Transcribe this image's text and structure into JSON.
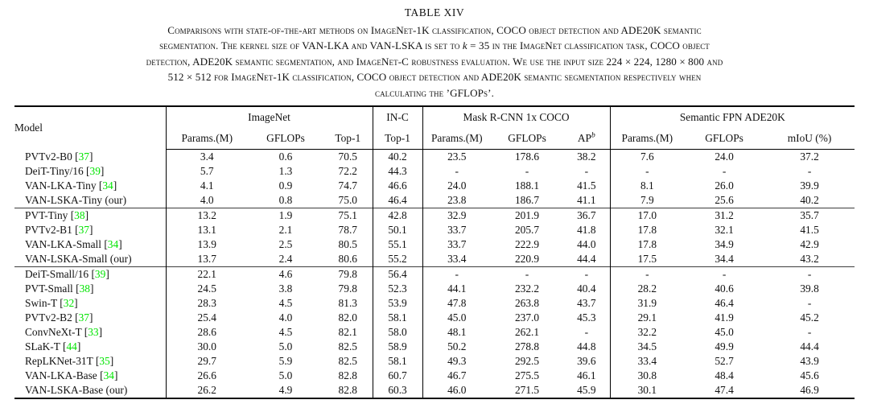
{
  "caption": {
    "label": "TABLE XIV",
    "line1": "Comparisons with state-of-the-art methods on ImageNet-1K classification, COCO object detection and ADE20K semantic",
    "line2_pre": "segmentation. The kernel size of VAN-LKA and VAN-LSKA is set to ",
    "line2_k": "k",
    "line2_post": " = 35 in the ImageNet classification task, COCO object",
    "line3": "detection, ADE20K semantic segmentation, and ImageNet-C robustness evaluation. We use the input size 224 × 224, 1280 × 800 and",
    "line4": "512 × 512 for ImageNet-1K classification, COCO object detection and ADE20K semantic segmentation respectively when",
    "line5": "calculating the ’GFLOPs’."
  },
  "colors": {
    "citation_green": "#00e400"
  },
  "table": {
    "header": {
      "model": "Model",
      "imagenet": "ImageNet",
      "inc": "IN-C",
      "coco": "Mask R-CNN 1x COCO",
      "ade": "Semantic FPN ADE20K",
      "sub": [
        "Params.(M)",
        "GFLOPs",
        "Top-1",
        "Top-1",
        "Params.(M)",
        "GFLOPs",
        "AP",
        "Params.(M)",
        "GFLOPs",
        "mIoU (%)"
      ],
      "ap_sup": "b"
    },
    "groups": [
      {
        "rows": [
          {
            "model": "PVTv2-B0",
            "cite": "37",
            "values": [
              "3.4",
              "0.6",
              "70.5",
              "40.2",
              "23.5",
              "178.6",
              "38.2",
              "7.6",
              "24.0",
              "37.2"
            ],
            "bold": []
          },
          {
            "model": "DeiT-Tiny/16",
            "cite": "39",
            "values": [
              "5.7",
              "1.3",
              "72.2",
              "44.3",
              "-",
              "-",
              "-",
              "-",
              "-",
              "-"
            ],
            "bold": []
          },
          {
            "model": "VAN-LKA-Tiny",
            "cite": "34",
            "values": [
              "4.1",
              "0.9",
              "74.7",
              "46.6",
              "24.0",
              "188.1",
              "41.5",
              "8.1",
              "26.0",
              "39.9"
            ],
            "bold": [
              3,
              6
            ]
          },
          {
            "model": "VAN-LSKA-Tiny (our)",
            "cite": null,
            "values": [
              "4.0",
              "0.8",
              "75.0",
              "46.4",
              "23.8",
              "186.7",
              "41.1",
              "7.9",
              "25.6",
              "40.2"
            ],
            "bold": [
              2,
              9
            ]
          }
        ]
      },
      {
        "rows": [
          {
            "model": "PVT-Tiny",
            "cite": "38",
            "values": [
              "13.2",
              "1.9",
              "75.1",
              "42.8",
              "32.9",
              "201.9",
              "36.7",
              "17.0",
              "31.2",
              "35.7"
            ],
            "bold": []
          },
          {
            "model": "PVTv2-B1",
            "cite": "37",
            "values": [
              "13.1",
              "2.1",
              "78.7",
              "50.1",
              "33.7",
              "205.7",
              "41.8",
              "17.8",
              "32.1",
              "41.5"
            ],
            "bold": []
          },
          {
            "model": "VAN-LKA-Small",
            "cite": "34",
            "values": [
              "13.9",
              "2.5",
              "80.5",
              "55.1",
              "33.7",
              "222.9",
              "44.0",
              "17.8",
              "34.9",
              "42.9"
            ],
            "bold": []
          },
          {
            "model": "VAN-LSKA-Small (our)",
            "cite": null,
            "values": [
              "13.7",
              "2.4",
              "80.6",
              "55.2",
              "33.4",
              "220.9",
              "44.4",
              "17.5",
              "34.4",
              "43.2"
            ],
            "bold": [
              2,
              3,
              6,
              9
            ]
          }
        ]
      },
      {
        "rows": [
          {
            "model": "DeiT-Small/16",
            "cite": "39",
            "values": [
              "22.1",
              "4.6",
              "79.8",
              "56.4",
              "-",
              "-",
              "-",
              "-",
              "-",
              "-"
            ],
            "bold": []
          },
          {
            "model": "PVT-Small",
            "cite": "38",
            "values": [
              "24.5",
              "3.8",
              "79.8",
              "52.3",
              "44.1",
              "232.2",
              "40.4",
              "28.2",
              "40.6",
              "39.8"
            ],
            "bold": []
          },
          {
            "model": "Swin-T",
            "cite": "32",
            "values": [
              "28.3",
              "4.5",
              "81.3",
              "53.9",
              "47.8",
              "263.8",
              "43.7",
              "31.9",
              "46.4",
              "-"
            ],
            "bold": []
          },
          {
            "model": "PVTv2-B2",
            "cite": "37",
            "values": [
              "25.4",
              "4.0",
              "82.0",
              "58.1",
              "45.0",
              "237.0",
              "45.3",
              "29.1",
              "41.9",
              "45.2"
            ],
            "bold": []
          },
          {
            "model": "ConvNeXt-T",
            "cite": "33",
            "values": [
              "28.6",
              "4.5",
              "82.1",
              "58.0",
              "48.1",
              "262.1",
              "-",
              "32.2",
              "45.0",
              "-"
            ],
            "bold": []
          },
          {
            "model": "SLaK-T",
            "cite": "44",
            "values": [
              "30.0",
              "5.0",
              "82.5",
              "58.9",
              "50.2",
              "278.8",
              "44.8",
              "34.5",
              "49.9",
              "44.4"
            ],
            "bold": []
          },
          {
            "model": "RepLKNet-31T",
            "cite": "35",
            "values": [
              "29.7",
              "5.9",
              "82.5",
              "58.1",
              "49.3",
              "292.5",
              "39.6",
              "33.4",
              "52.7",
              "43.9"
            ],
            "bold": []
          },
          {
            "model": "VAN-LKA-Base",
            "cite": "34",
            "values": [
              "26.6",
              "5.0",
              "82.8",
              "60.7",
              "46.7",
              "275.5",
              "46.1",
              "30.8",
              "48.4",
              "45.6"
            ],
            "bold": [
              3,
              6
            ]
          },
          {
            "model": "VAN-LSKA-Base (our)",
            "cite": null,
            "values": [
              "26.2",
              "4.9",
              "82.8",
              "60.3",
              "46.0",
              "271.5",
              "45.9",
              "30.1",
              "47.4",
              "46.9"
            ],
            "bold": [
              2,
              9
            ]
          }
        ]
      }
    ]
  }
}
